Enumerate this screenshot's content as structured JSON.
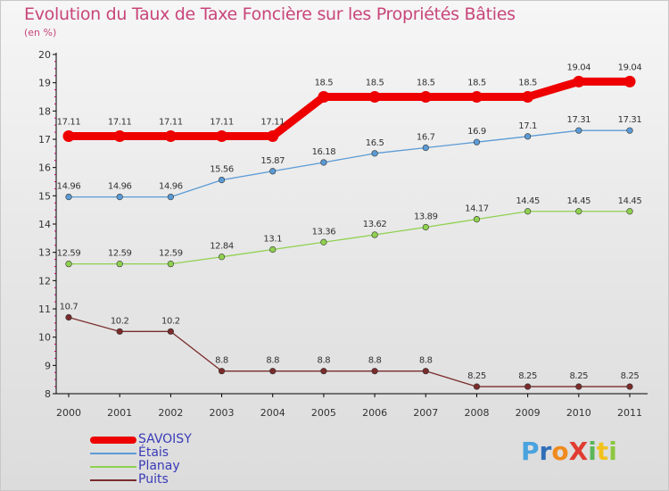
{
  "title": "Evolution du Taux de Taxe Foncière sur les Propriétés Bâties",
  "subtitle": "(en %)",
  "logo_letters": [
    {
      "ch": "P",
      "color": "#4aa3df"
    },
    {
      "ch": "r",
      "color": "#2f6fb7"
    },
    {
      "ch": "o",
      "color": "#f08a1c"
    },
    {
      "ch": "X",
      "color": "#e03c31"
    },
    {
      "ch": "i",
      "color": "#5bb55a"
    },
    {
      "ch": "t",
      "color": "#f2c21b"
    },
    {
      "ch": "i",
      "color": "#8cc63f"
    }
  ],
  "chart_data": {
    "type": "line",
    "title": "Evolution du Taux de Taxe Foncière sur les Propriétés Bâties",
    "ylabel": "(en %)",
    "xlabel": "",
    "ylim": [
      8,
      20
    ],
    "yticks": [
      8,
      9,
      10,
      11,
      12,
      13,
      14,
      15,
      16,
      17,
      18,
      19,
      20
    ],
    "categories": [
      "2000",
      "2001",
      "2002",
      "2003",
      "2004",
      "2005",
      "2006",
      "2007",
      "2008",
      "2009",
      "2010",
      "2011"
    ],
    "legend_position": "bottom-left",
    "series": [
      {
        "name": "SAVOISY",
        "color": "#ee0000",
        "values": [
          17.11,
          17.11,
          17.11,
          17.11,
          17.11,
          18.5,
          18.5,
          18.5,
          18.5,
          18.5,
          19.04,
          19.04
        ],
        "labels": [
          "17.11",
          "17.11",
          "17.11",
          "17.11",
          "17.11",
          "18.5",
          "18.5",
          "18.5",
          "18.5",
          "18.5",
          "19.04",
          "19.04"
        ]
      },
      {
        "name": "Étais",
        "color": "#5b9bd5",
        "values": [
          14.96,
          14.96,
          14.96,
          15.56,
          15.87,
          16.18,
          16.5,
          16.7,
          16.9,
          17.1,
          17.31,
          17.31
        ],
        "labels": [
          "14.96",
          "14.96",
          "14.96",
          "15.56",
          "15.87",
          "16.18",
          "16.5",
          "16.7",
          "16.9",
          "17.1",
          "17.31",
          "17.31"
        ]
      },
      {
        "name": "Planay",
        "color": "#8fd14f",
        "values": [
          12.59,
          12.59,
          12.59,
          12.84,
          13.1,
          13.36,
          13.62,
          13.89,
          14.17,
          14.45,
          14.45,
          14.45
        ],
        "labels": [
          "12.59",
          "12.59",
          "12.59",
          "12.84",
          "13.1",
          "13.36",
          "13.62",
          "13.89",
          "14.17",
          "14.45",
          "14.45",
          "14.45"
        ]
      },
      {
        "name": "Puits",
        "color": "#7a2b2b",
        "values": [
          10.7,
          10.2,
          10.2,
          8.8,
          8.8,
          8.8,
          8.8,
          8.8,
          8.25,
          8.25,
          8.25,
          8.25
        ],
        "labels": [
          "10.7",
          "10.2",
          "10.2",
          "8.8",
          "8.8",
          "8.8",
          "8.8",
          "8.8",
          "8.25",
          "8.25",
          "8.25",
          "8.25"
        ]
      }
    ]
  }
}
